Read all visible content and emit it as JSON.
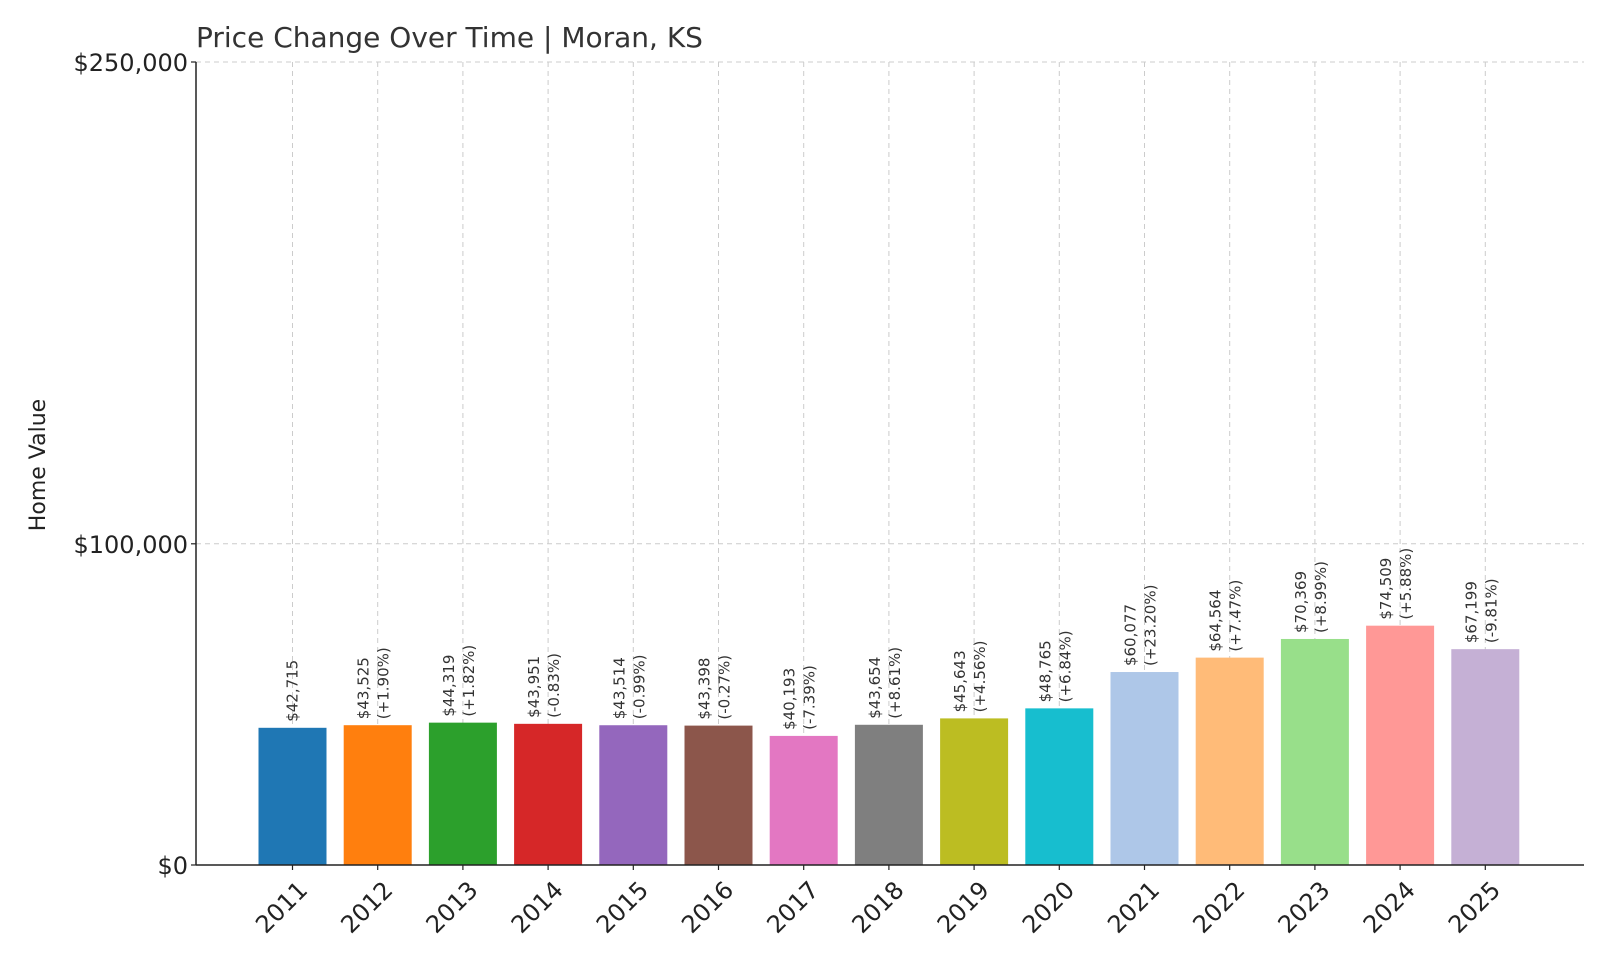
{
  "chart_data": {
    "type": "bar",
    "title": "Price Change Over Time | Moran, KS",
    "xlabel": "",
    "ylabel": "Home Value",
    "ylim": [
      0,
      250000
    ],
    "yticks": [
      0,
      100000,
      250000
    ],
    "ytick_labels": [
      "$0",
      "$100,000",
      "$250,000"
    ],
    "grid": true,
    "categories": [
      "2011",
      "2012",
      "2013",
      "2014",
      "2015",
      "2016",
      "2017",
      "2018",
      "2019",
      "2020",
      "2021",
      "2022",
      "2023",
      "2024",
      "2025"
    ],
    "values": [
      42715,
      43525,
      44319,
      43951,
      43514,
      43398,
      40193,
      43654,
      45643,
      48765,
      60077,
      64564,
      70369,
      74509,
      67199
    ],
    "value_labels": [
      "$42,715",
      "$43,525",
      "$44,319",
      "$43,951",
      "$43,514",
      "$43,398",
      "$40,193",
      "$43,654",
      "$45,643",
      "$48,765",
      "$60,077",
      "$64,564",
      "$70,369",
      "$74,509",
      "$67,199"
    ],
    "change_labels": [
      "",
      "(+1.90%)",
      "(+1.82%)",
      "(-0.83%)",
      "(-0.99%)",
      "(-0.27%)",
      "(-7.39%)",
      "(+8.61%)",
      "(+4.56%)",
      "(+6.84%)",
      "(+23.20%)",
      "(+7.47%)",
      "(+8.99%)",
      "(+5.88%)",
      "(-9.81%)"
    ],
    "colors": [
      "#1f77b4",
      "#ff7f0e",
      "#2ca02c",
      "#d62728",
      "#9467bd",
      "#8c564b",
      "#e377c2",
      "#7f7f7f",
      "#bcbd22",
      "#17becf",
      "#aec7e8",
      "#ffbb78",
      "#98df8a",
      "#ff9896",
      "#c5b0d5"
    ]
  }
}
